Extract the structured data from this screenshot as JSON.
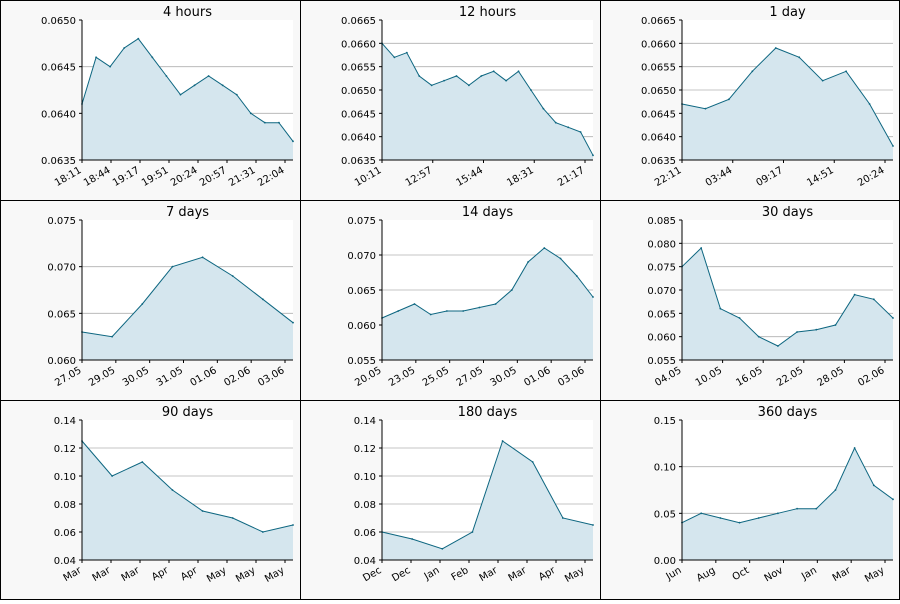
{
  "panels": [
    {
      "title": "4 hours",
      "chart_data": {
        "type": "area",
        "x": [
          "18:11",
          "18:28",
          "18:44",
          "19:01",
          "19:17",
          "19:34",
          "19:51",
          "20:07",
          "20:24",
          "20:41",
          "20:57",
          "21:14",
          "21:31",
          "21:47",
          "22:04",
          "22:11"
        ],
        "y": [
          0.0641,
          0.0646,
          0.0645,
          0.0647,
          0.0648,
          0.0646,
          0.0644,
          0.0642,
          0.0643,
          0.0644,
          0.0643,
          0.0642,
          0.064,
          0.0639,
          0.0639,
          0.0637
        ],
        "ylim": [
          0.0635,
          0.065
        ],
        "yticks": [
          "0.0635",
          "0.0640",
          "0.0645",
          "0.0650"
        ],
        "xticks": [
          "18:11",
          "18:44",
          "19:17",
          "19:51",
          "20:24",
          "20:57",
          "21:31",
          "22:04"
        ],
        "grid": true
      }
    },
    {
      "title": "12 hours",
      "chart_data": {
        "type": "area",
        "x": [
          "10:11",
          "10:40",
          "11:09",
          "11:38",
          "12:07",
          "12:57",
          "13:40",
          "14:23",
          "15:06",
          "15:44",
          "16:20",
          "17:00",
          "17:40",
          "18:31",
          "19:20",
          "20:10",
          "21:17",
          "22:11"
        ],
        "y": [
          0.066,
          0.0657,
          0.0658,
          0.0653,
          0.0651,
          0.0652,
          0.0653,
          0.0651,
          0.0653,
          0.0654,
          0.0652,
          0.0654,
          0.065,
          0.0646,
          0.0643,
          0.0642,
          0.0641,
          0.0636
        ],
        "ylim": [
          0.0635,
          0.0665
        ],
        "yticks": [
          "0.0635",
          "0.0640",
          "0.0645",
          "0.0650",
          "0.0655",
          "0.0660",
          "0.0665"
        ],
        "xticks": [
          "10:11",
          "12:57",
          "15:44",
          "18:31",
          "21:17"
        ],
        "grid": true
      }
    },
    {
      "title": "1 day",
      "chart_data": {
        "type": "area",
        "x": [
          "22:11",
          "00:57",
          "03:44",
          "06:30",
          "09:17",
          "12:04",
          "14:51",
          "17:37",
          "20:24",
          "22:11"
        ],
        "y": [
          0.0647,
          0.0646,
          0.0648,
          0.0654,
          0.0659,
          0.0657,
          0.0652,
          0.0654,
          0.0647,
          0.0638
        ],
        "ylim": [
          0.0635,
          0.0665
        ],
        "yticks": [
          "0.0635",
          "0.0640",
          "0.0645",
          "0.0650",
          "0.0655",
          "0.0660",
          "0.0665"
        ],
        "xticks": [
          "22:11",
          "03:44",
          "09:17",
          "14:51",
          "20:24"
        ],
        "grid": true
      }
    },
    {
      "title": "7 days",
      "chart_data": {
        "type": "area",
        "x": [
          "27.05",
          "28.05",
          "29.05",
          "30.05",
          "31.05",
          "01.06",
          "02.06",
          "03.06"
        ],
        "y": [
          0.063,
          0.0625,
          0.066,
          0.07,
          0.071,
          0.069,
          0.0665,
          0.064
        ],
        "ylim": [
          0.06,
          0.075
        ],
        "yticks": [
          "0.060",
          "0.065",
          "0.070",
          "0.075"
        ],
        "xticks": [
          "27.05",
          "29.05",
          "30.05",
          "31.05",
          "01.06",
          "02.06",
          "03.06"
        ],
        "grid": true
      }
    },
    {
      "title": "14 days",
      "chart_data": {
        "type": "area",
        "x": [
          "20.05",
          "22.05",
          "23.05",
          "24.05",
          "25.05",
          "26.05",
          "27.05",
          "28.05",
          "29.05",
          "30.05",
          "31.05",
          "01.06",
          "02.06",
          "03.06"
        ],
        "y": [
          0.061,
          0.062,
          0.063,
          0.0615,
          0.062,
          0.062,
          0.0625,
          0.063,
          0.065,
          0.069,
          0.071,
          0.0695,
          0.067,
          0.064
        ],
        "ylim": [
          0.055,
          0.075
        ],
        "yticks": [
          "0.055",
          "0.060",
          "0.065",
          "0.070",
          "0.075"
        ],
        "xticks": [
          "20.05",
          "23.05",
          "25.05",
          "27.05",
          "30.05",
          "01.06",
          "03.06"
        ],
        "grid": true
      }
    },
    {
      "title": "30 days",
      "chart_data": {
        "type": "area",
        "x": [
          "04.05",
          "07.05",
          "10.05",
          "13.05",
          "16.05",
          "19.05",
          "22.05",
          "25.05",
          "28.05",
          "31.05",
          "02.06",
          "04.06"
        ],
        "y": [
          0.075,
          0.079,
          0.066,
          0.064,
          0.06,
          0.058,
          0.061,
          0.0615,
          0.0625,
          0.069,
          0.068,
          0.064
        ],
        "ylim": [
          0.055,
          0.085
        ],
        "yticks": [
          "0.055",
          "0.060",
          "0.065",
          "0.070",
          "0.075",
          "0.080",
          "0.085"
        ],
        "xticks": [
          "04.05",
          "10.05",
          "16.05",
          "22.05",
          "28.05",
          "02.06"
        ],
        "grid": true
      }
    },
    {
      "title": "90 days",
      "chart_data": {
        "type": "area",
        "x": [
          "Mar",
          "Mar",
          "Mar",
          "Apr",
          "Apr",
          "May",
          "May",
          "May"
        ],
        "y": [
          0.125,
          0.1,
          0.11,
          0.09,
          0.075,
          0.07,
          0.06,
          0.065
        ],
        "ylim": [
          0.04,
          0.14
        ],
        "yticks": [
          "0.04",
          "0.06",
          "0.08",
          "0.10",
          "0.12",
          "0.14"
        ],
        "xticks": [
          "Mar",
          "Mar",
          "Mar",
          "Apr",
          "Apr",
          "May",
          "May",
          "May"
        ],
        "grid": true
      }
    },
    {
      "title": "180 days",
      "chart_data": {
        "type": "area",
        "x": [
          "Dec",
          "Dec",
          "Jan",
          "Feb",
          "Mar",
          "Mar",
          "Apr",
          "May"
        ],
        "y": [
          0.06,
          0.055,
          0.048,
          0.06,
          0.125,
          0.11,
          0.07,
          0.065
        ],
        "ylim": [
          0.04,
          0.14
        ],
        "yticks": [
          "0.04",
          "0.06",
          "0.08",
          "0.10",
          "0.12",
          "0.14"
        ],
        "xticks": [
          "Dec",
          "Dec",
          "Jan",
          "Feb",
          "Mar",
          "Mar",
          "Apr",
          "May"
        ],
        "grid": true
      }
    },
    {
      "title": "360 days",
      "chart_data": {
        "type": "area",
        "x": [
          "Jun",
          "Jul",
          "Aug",
          "Sep",
          "Oct",
          "Nov",
          "Dec",
          "Jan",
          "Feb",
          "Mar",
          "Apr",
          "May"
        ],
        "y": [
          0.04,
          0.05,
          0.045,
          0.04,
          0.045,
          0.05,
          0.055,
          0.055,
          0.075,
          0.12,
          0.08,
          0.065
        ],
        "ylim": [
          0.0,
          0.15
        ],
        "yticks": [
          "0.00",
          "0.05",
          "0.10",
          "0.15"
        ],
        "xticks": [
          "Jun",
          "Aug",
          "Oct",
          "Nov",
          "Jan",
          "Mar",
          "May"
        ],
        "grid": true
      }
    }
  ],
  "colors": {
    "line": "#0d6680",
    "fill": "#d5e6ee",
    "grid": "#b0b0b0",
    "panel_bg": "#f8f8f8",
    "plot_bg": "#ffffff"
  }
}
